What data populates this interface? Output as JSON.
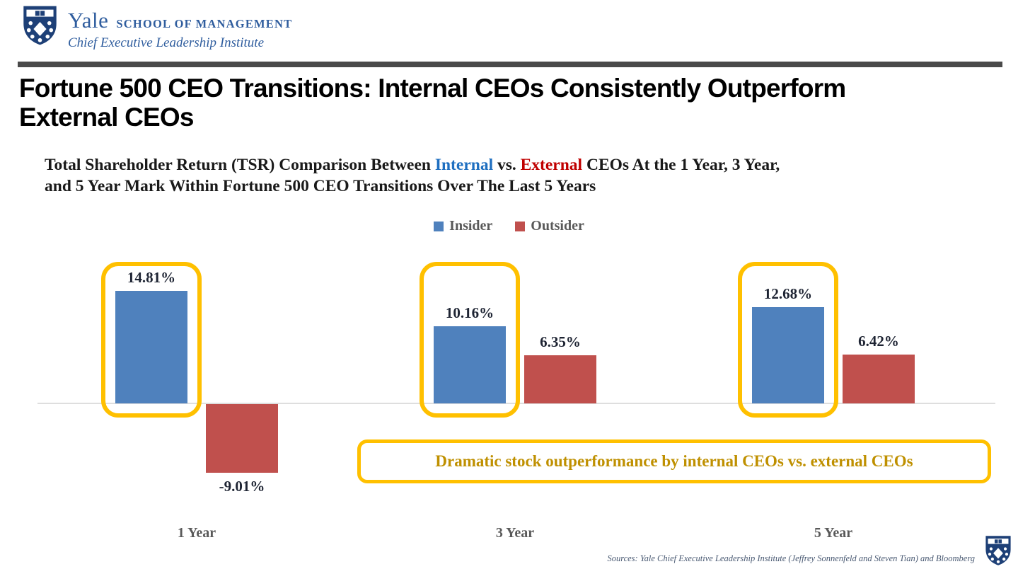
{
  "header": {
    "brand": "Yale",
    "school": "SCHOOL OF MANAGEMENT",
    "institute": "Chief Executive Leadership Institute"
  },
  "title": "Fortune 500 CEO Transitions: Internal CEOs Consistently Outperform\nExternal CEOs",
  "subtitle": {
    "part1": "Total Shareholder Return (TSR) Comparison Between ",
    "internal": "Internal",
    "part2": " vs. ",
    "external": "External",
    "part3": " CEOs At the 1 Year, 3 Year,\nand 5 Year Mark Within Fortune 500 CEO Transitions Over The Last 5 Years",
    "internal_color": "#1F6FC0",
    "external_color": "#C00000"
  },
  "legend": [
    {
      "label": "Insider",
      "color": "#4F81BD"
    },
    {
      "label": "Outsider",
      "color": "#C0504D"
    }
  ],
  "chart_data": {
    "type": "bar",
    "title": "Total Shareholder Return (TSR) Comparison Between Internal vs. External CEOs At the 1 Year, 3 Year, and 5 Year Mark Within Fortune 500 CEO Transitions Over The Last 5 Years",
    "categories": [
      "1 Year",
      "3 Year",
      "5 Year"
    ],
    "series": [
      {
        "name": "Insider",
        "color": "#4F81BD",
        "values": [
          14.81,
          10.16,
          12.68
        ],
        "labels": [
          "14.81%",
          "10.16%",
          "12.68%"
        ]
      },
      {
        "name": "Outsider",
        "color": "#C0504D",
        "values": [
          -9.01,
          6.35,
          6.42
        ],
        "labels": [
          "-9.01%",
          "6.35%",
          "6.42%"
        ]
      }
    ],
    "xlabel": "",
    "ylabel": "",
    "ylim": [
      -12,
      17
    ],
    "grid": false,
    "data_labels": true,
    "legend_position": "top-center",
    "highlight": {
      "series": "Insider",
      "color": "#FFC000",
      "note": "gold rounded outline around each Insider bar and its data label"
    },
    "annotations": [
      "Dramatic stock outperformance by internal CEOs vs. external CEOs"
    ]
  },
  "callout": {
    "text": "Dramatic stock outperformance by internal CEOs vs. external CEOs",
    "border_color": "#FFC000",
    "text_color": "#BF9000"
  },
  "footer": {
    "source": "Sources: Yale Chief Executive Leadership Institute (Jeffrey Sonnenfeld and Steven Tian) and Bloomberg"
  },
  "colors": {
    "insider": "#4F81BD",
    "outsider": "#C0504D",
    "gold_highlight": "#FFC000",
    "axis_line": "#DEDEDE",
    "divider": "#4A4A4A",
    "yale_blue": "#2F5D9E"
  }
}
